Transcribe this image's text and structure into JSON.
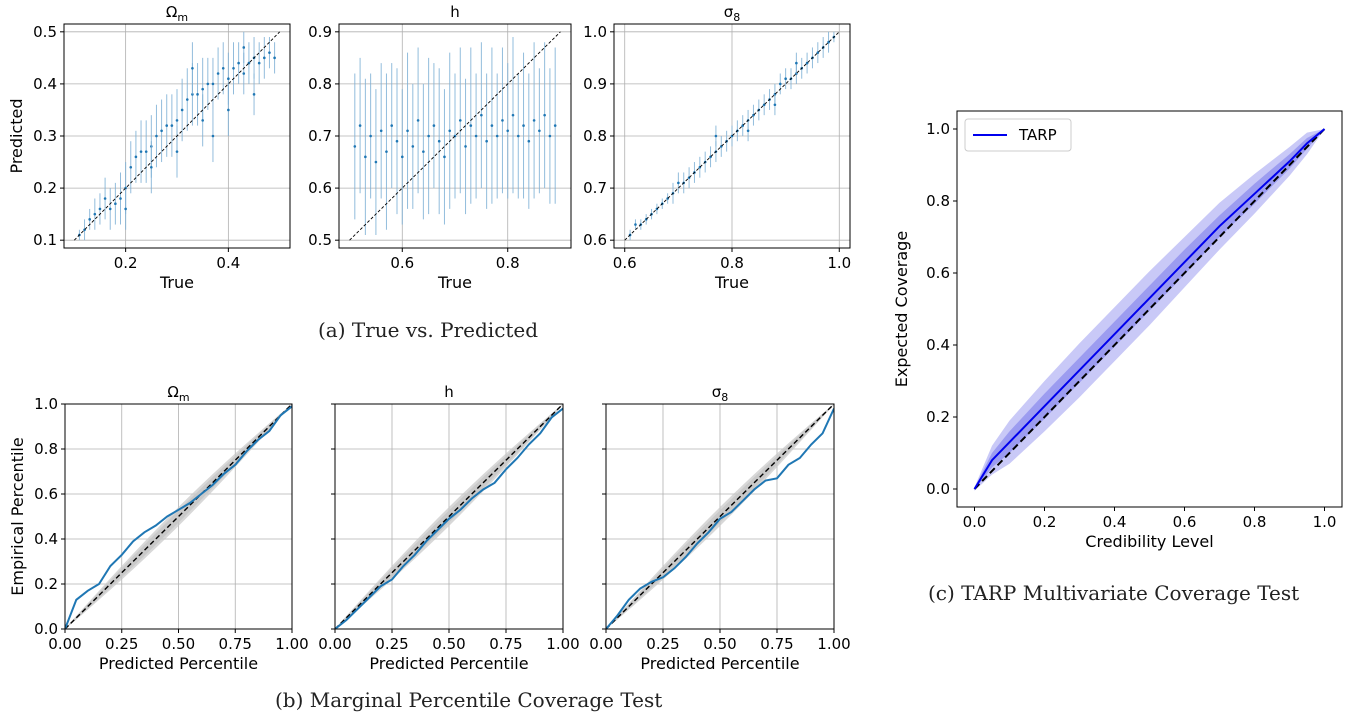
{
  "captions": {
    "a": "(a) True vs. Predicted",
    "b": "(b) Marginal Percentile Coverage Test",
    "c": "(c) TARP Multivariate Coverage Test"
  },
  "colors": {
    "scatter": "#1f77b4",
    "errorbar": "#7fb1d6",
    "calibration": "#1f77b4",
    "band": "#c8c8c8",
    "tarp_line": "#0000ee",
    "tarp_band_outer": "#c9c9f7",
    "tarp_band_inner": "#9c9cf0",
    "diagonal": "#000000",
    "grid": "#b0b0b0"
  },
  "chart_data": [
    {
      "id": "a1",
      "type": "scatter",
      "title": "Ω_m",
      "title_main": "Ω",
      "title_sub": "m",
      "xlabel": "True",
      "ylabel": "Predicted",
      "xlim": [
        0.08,
        0.52
      ],
      "ylim": [
        0.085,
        0.515
      ],
      "xticks": [
        0.2,
        0.4
      ],
      "xtick_labels": [
        "0.2",
        "0.4"
      ],
      "yticks": [
        0.1,
        0.2,
        0.3,
        0.4,
        0.5
      ],
      "ytick_labels": [
        "0.1",
        "0.2",
        "0.3",
        "0.4",
        "0.5"
      ],
      "diagonal": [
        0.1,
        0.5
      ],
      "grid": true,
      "points": [
        [
          0.11,
          0.11,
          0.01
        ],
        [
          0.12,
          0.12,
          0.02
        ],
        [
          0.13,
          0.14,
          0.02
        ],
        [
          0.14,
          0.15,
          0.03
        ],
        [
          0.15,
          0.16,
          0.03
        ],
        [
          0.16,
          0.18,
          0.04
        ],
        [
          0.17,
          0.16,
          0.04
        ],
        [
          0.18,
          0.17,
          0.04
        ],
        [
          0.19,
          0.18,
          0.05
        ],
        [
          0.2,
          0.2,
          0.05
        ],
        [
          0.21,
          0.24,
          0.05
        ],
        [
          0.22,
          0.26,
          0.05
        ],
        [
          0.23,
          0.27,
          0.06
        ],
        [
          0.24,
          0.27,
          0.06
        ],
        [
          0.25,
          0.28,
          0.06
        ],
        [
          0.26,
          0.3,
          0.06
        ],
        [
          0.27,
          0.31,
          0.06
        ],
        [
          0.28,
          0.32,
          0.06
        ],
        [
          0.29,
          0.32,
          0.06
        ],
        [
          0.3,
          0.33,
          0.06
        ],
        [
          0.31,
          0.35,
          0.06
        ],
        [
          0.32,
          0.37,
          0.06
        ],
        [
          0.33,
          0.38,
          0.06
        ],
        [
          0.34,
          0.38,
          0.06
        ],
        [
          0.35,
          0.39,
          0.06
        ],
        [
          0.36,
          0.4,
          0.05
        ],
        [
          0.37,
          0.4,
          0.05
        ],
        [
          0.38,
          0.42,
          0.05
        ],
        [
          0.39,
          0.43,
          0.05
        ],
        [
          0.4,
          0.41,
          0.05
        ],
        [
          0.41,
          0.43,
          0.05
        ],
        [
          0.42,
          0.44,
          0.04
        ],
        [
          0.43,
          0.42,
          0.04
        ],
        [
          0.44,
          0.44,
          0.04
        ],
        [
          0.45,
          0.45,
          0.04
        ],
        [
          0.46,
          0.44,
          0.04
        ],
        [
          0.47,
          0.45,
          0.04
        ],
        [
          0.48,
          0.46,
          0.03
        ],
        [
          0.49,
          0.45,
          0.03
        ],
        [
          0.3,
          0.27,
          0.05
        ],
        [
          0.35,
          0.33,
          0.05
        ],
        [
          0.4,
          0.35,
          0.05
        ],
        [
          0.45,
          0.38,
          0.04
        ],
        [
          0.25,
          0.24,
          0.05
        ],
        [
          0.2,
          0.16,
          0.04
        ],
        [
          0.33,
          0.43,
          0.05
        ],
        [
          0.37,
          0.3,
          0.05
        ],
        [
          0.43,
          0.47,
          0.03
        ]
      ]
    },
    {
      "id": "a2",
      "type": "scatter",
      "title": "h",
      "xlabel": "True",
      "ylabel": "",
      "xlim": [
        0.48,
        0.92
      ],
      "ylim": [
        0.485,
        0.915
      ],
      "xticks": [
        0.6,
        0.8
      ],
      "xtick_labels": [
        "0.6",
        "0.8"
      ],
      "yticks": [
        0.5,
        0.6,
        0.7,
        0.8,
        0.9
      ],
      "ytick_labels": [
        "0.5",
        "0.6",
        "0.7",
        "0.8",
        "0.9"
      ],
      "diagonal": [
        0.5,
        0.9
      ],
      "grid": true,
      "points": [
        [
          0.51,
          0.68,
          0.14
        ],
        [
          0.52,
          0.72,
          0.13
        ],
        [
          0.53,
          0.66,
          0.15
        ],
        [
          0.54,
          0.7,
          0.12
        ],
        [
          0.55,
          0.65,
          0.14
        ],
        [
          0.56,
          0.71,
          0.13
        ],
        [
          0.57,
          0.67,
          0.15
        ],
        [
          0.58,
          0.72,
          0.12
        ],
        [
          0.59,
          0.69,
          0.14
        ],
        [
          0.6,
          0.66,
          0.13
        ],
        [
          0.61,
          0.71,
          0.15
        ],
        [
          0.62,
          0.68,
          0.12
        ],
        [
          0.63,
          0.73,
          0.14
        ],
        [
          0.64,
          0.67,
          0.13
        ],
        [
          0.65,
          0.7,
          0.15
        ],
        [
          0.66,
          0.72,
          0.12
        ],
        [
          0.67,
          0.69,
          0.14
        ],
        [
          0.68,
          0.66,
          0.13
        ],
        [
          0.69,
          0.71,
          0.15
        ],
        [
          0.7,
          0.7,
          0.12
        ],
        [
          0.71,
          0.73,
          0.14
        ],
        [
          0.72,
          0.68,
          0.13
        ],
        [
          0.73,
          0.72,
          0.15
        ],
        [
          0.74,
          0.7,
          0.12
        ],
        [
          0.75,
          0.74,
          0.14
        ],
        [
          0.76,
          0.69,
          0.13
        ],
        [
          0.77,
          0.72,
          0.15
        ],
        [
          0.78,
          0.7,
          0.12
        ],
        [
          0.79,
          0.73,
          0.14
        ],
        [
          0.8,
          0.71,
          0.13
        ],
        [
          0.81,
          0.74,
          0.15
        ],
        [
          0.82,
          0.7,
          0.12
        ],
        [
          0.83,
          0.72,
          0.14
        ],
        [
          0.84,
          0.69,
          0.13
        ],
        [
          0.85,
          0.73,
          0.15
        ],
        [
          0.86,
          0.71,
          0.12
        ],
        [
          0.87,
          0.74,
          0.14
        ],
        [
          0.88,
          0.7,
          0.13
        ],
        [
          0.89,
          0.72,
          0.15
        ]
      ]
    },
    {
      "id": "a3",
      "type": "scatter",
      "title": "σ_8",
      "title_main": "σ",
      "title_sub": "8",
      "xlabel": "True",
      "ylabel": "",
      "xlim": [
        0.58,
        1.02
      ],
      "ylim": [
        0.585,
        1.015
      ],
      "xticks": [
        0.6,
        0.8,
        1.0
      ],
      "xtick_labels": [
        "0.6",
        "0.8",
        "1.0"
      ],
      "yticks": [
        0.6,
        0.7,
        0.8,
        0.9,
        1.0
      ],
      "ytick_labels": [
        "0.6",
        "0.7",
        "0.8",
        "0.9",
        "1.0"
      ],
      "diagonal": [
        0.6,
        1.0
      ],
      "grid": true,
      "points": [
        [
          0.61,
          0.61,
          0.01
        ],
        [
          0.62,
          0.63,
          0.01
        ],
        [
          0.63,
          0.63,
          0.01
        ],
        [
          0.64,
          0.64,
          0.01
        ],
        [
          0.65,
          0.65,
          0.01
        ],
        [
          0.66,
          0.66,
          0.01
        ],
        [
          0.67,
          0.67,
          0.01
        ],
        [
          0.68,
          0.68,
          0.01
        ],
        [
          0.69,
          0.69,
          0.02
        ],
        [
          0.7,
          0.71,
          0.02
        ],
        [
          0.71,
          0.71,
          0.02
        ],
        [
          0.72,
          0.72,
          0.02
        ],
        [
          0.73,
          0.73,
          0.02
        ],
        [
          0.74,
          0.74,
          0.02
        ],
        [
          0.75,
          0.75,
          0.02
        ],
        [
          0.76,
          0.76,
          0.02
        ],
        [
          0.77,
          0.77,
          0.02
        ],
        [
          0.78,
          0.78,
          0.02
        ],
        [
          0.79,
          0.79,
          0.02
        ],
        [
          0.8,
          0.8,
          0.02
        ],
        [
          0.81,
          0.81,
          0.02
        ],
        [
          0.82,
          0.82,
          0.02
        ],
        [
          0.83,
          0.83,
          0.02
        ],
        [
          0.84,
          0.84,
          0.02
        ],
        [
          0.85,
          0.85,
          0.02
        ],
        [
          0.86,
          0.86,
          0.02
        ],
        [
          0.87,
          0.87,
          0.02
        ],
        [
          0.88,
          0.88,
          0.02
        ],
        [
          0.89,
          0.9,
          0.02
        ],
        [
          0.9,
          0.91,
          0.02
        ],
        [
          0.91,
          0.91,
          0.02
        ],
        [
          0.92,
          0.92,
          0.02
        ],
        [
          0.93,
          0.93,
          0.02
        ],
        [
          0.94,
          0.94,
          0.02
        ],
        [
          0.95,
          0.95,
          0.02
        ],
        [
          0.96,
          0.96,
          0.02
        ],
        [
          0.97,
          0.97,
          0.02
        ],
        [
          0.98,
          0.98,
          0.02
        ],
        [
          0.99,
          0.99,
          0.01
        ],
        [
          0.77,
          0.8,
          0.02
        ],
        [
          0.83,
          0.81,
          0.02
        ],
        [
          0.88,
          0.86,
          0.02
        ],
        [
          0.92,
          0.94,
          0.02
        ]
      ]
    },
    {
      "id": "b1",
      "type": "line",
      "title": "Ω_m",
      "title_main": "Ω",
      "title_sub": "m",
      "xlabel": "Predicted Percentile",
      "ylabel": "Empirical Percentile",
      "xlim": [
        0,
        1
      ],
      "ylim": [
        0,
        1
      ],
      "xticks": [
        0,
        0.25,
        0.5,
        0.75,
        1.0
      ],
      "xtick_labels": [
        "0.00",
        "0.25",
        "0.50",
        "0.75",
        "1.00"
      ],
      "yticks": [
        0,
        0.2,
        0.4,
        0.6,
        0.8,
        1.0
      ],
      "ytick_labels": [
        "0.0",
        "0.2",
        "0.4",
        "0.6",
        "0.8",
        "1.0"
      ],
      "grid": true,
      "band_width": [
        0.04,
        0.025
      ],
      "x": [
        0,
        0.05,
        0.1,
        0.15,
        0.2,
        0.25,
        0.3,
        0.35,
        0.4,
        0.45,
        0.5,
        0.55,
        0.6,
        0.65,
        0.7,
        0.75,
        0.8,
        0.85,
        0.9,
        0.95,
        1.0
      ],
      "y": [
        0,
        0.13,
        0.17,
        0.2,
        0.28,
        0.33,
        0.39,
        0.43,
        0.46,
        0.5,
        0.53,
        0.56,
        0.6,
        0.64,
        0.69,
        0.73,
        0.79,
        0.84,
        0.88,
        0.95,
        0.99
      ]
    },
    {
      "id": "b2",
      "type": "line",
      "title": "h",
      "xlabel": "Predicted Percentile",
      "ylabel": "",
      "xlim": [
        0,
        1
      ],
      "ylim": [
        0,
        1
      ],
      "xticks": [
        0,
        0.25,
        0.5,
        0.75,
        1.0
      ],
      "xtick_labels": [
        "0.00",
        "0.25",
        "0.50",
        "0.75",
        "1.00"
      ],
      "yticks": [
        0,
        0.2,
        0.4,
        0.6,
        0.8,
        1.0
      ],
      "ytick_labels": [
        "",
        "",
        "",
        "",
        "",
        ""
      ],
      "grid": true,
      "band_width": [
        0.04,
        0.025
      ],
      "x": [
        0,
        0.05,
        0.1,
        0.15,
        0.2,
        0.25,
        0.3,
        0.35,
        0.4,
        0.45,
        0.5,
        0.55,
        0.6,
        0.65,
        0.7,
        0.75,
        0.8,
        0.85,
        0.9,
        0.95,
        1.0
      ],
      "y": [
        0,
        0.04,
        0.09,
        0.14,
        0.19,
        0.22,
        0.28,
        0.33,
        0.39,
        0.44,
        0.49,
        0.53,
        0.58,
        0.62,
        0.65,
        0.71,
        0.76,
        0.82,
        0.87,
        0.94,
        0.98
      ]
    },
    {
      "id": "b3",
      "type": "line",
      "title": "σ_8",
      "title_main": "σ",
      "title_sub": "8",
      "xlabel": "Predicted Percentile",
      "ylabel": "",
      "xlim": [
        0,
        1
      ],
      "ylim": [
        0,
        1
      ],
      "xticks": [
        0,
        0.25,
        0.5,
        0.75,
        1.0
      ],
      "xtick_labels": [
        "0.00",
        "0.25",
        "0.50",
        "0.75",
        "1.00"
      ],
      "yticks": [
        0,
        0.2,
        0.4,
        0.6,
        0.8,
        1.0
      ],
      "ytick_labels": [
        "",
        "",
        "",
        "",
        "",
        ""
      ],
      "grid": true,
      "band_width": [
        0.04,
        0.025
      ],
      "x": [
        0,
        0.05,
        0.1,
        0.15,
        0.2,
        0.25,
        0.3,
        0.35,
        0.4,
        0.45,
        0.5,
        0.55,
        0.6,
        0.65,
        0.7,
        0.75,
        0.8,
        0.85,
        0.9,
        0.95,
        1.0
      ],
      "y": [
        0,
        0.06,
        0.13,
        0.18,
        0.21,
        0.23,
        0.27,
        0.32,
        0.38,
        0.43,
        0.49,
        0.52,
        0.57,
        0.62,
        0.66,
        0.67,
        0.73,
        0.76,
        0.82,
        0.87,
        0.98
      ]
    },
    {
      "id": "c1",
      "type": "line",
      "title": "",
      "xlabel": "Credibility Level",
      "ylabel": "Expected Coverage",
      "xlim": [
        -0.05,
        1.05
      ],
      "ylim": [
        -0.05,
        1.05
      ],
      "xticks": [
        0,
        0.2,
        0.4,
        0.6,
        0.8,
        1.0
      ],
      "xtick_labels": [
        "0.0",
        "0.2",
        "0.4",
        "0.6",
        "0.8",
        "1.0"
      ],
      "yticks": [
        0,
        0.2,
        0.4,
        0.6,
        0.8,
        1.0
      ],
      "ytick_labels": [
        "0.0",
        "0.2",
        "0.4",
        "0.6",
        "0.8",
        "1.0"
      ],
      "grid": false,
      "legend": [
        "TARP"
      ],
      "legend_position": "upper left",
      "x": [
        0,
        0.05,
        0.1,
        0.2,
        0.3,
        0.4,
        0.5,
        0.6,
        0.7,
        0.8,
        0.9,
        0.95,
        1.0
      ],
      "y": [
        0,
        0.08,
        0.13,
        0.23,
        0.33,
        0.43,
        0.53,
        0.63,
        0.73,
        0.82,
        0.91,
        0.96,
        1.0
      ],
      "band_outer": [
        0.005,
        0.04,
        0.06,
        0.07,
        0.075,
        0.075,
        0.075,
        0.07,
        0.065,
        0.055,
        0.04,
        0.03,
        0.0
      ],
      "band_inner": [
        0.003,
        0.02,
        0.03,
        0.035,
        0.035,
        0.035,
        0.035,
        0.035,
        0.03,
        0.028,
        0.02,
        0.015,
        0.0
      ]
    }
  ]
}
